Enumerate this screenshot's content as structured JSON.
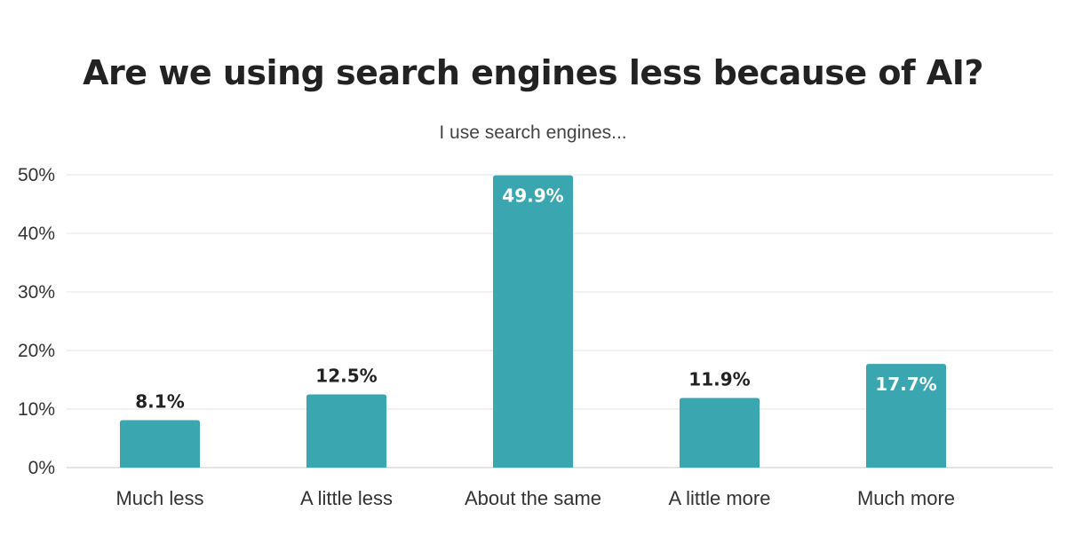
{
  "chart_data": {
    "type": "bar",
    "title": "Are we using search engines less because of AI?",
    "subtitle": "I use search engines...",
    "xlabel": "",
    "ylabel": "",
    "categories": [
      "Much less",
      "A little less",
      "About the same",
      "A little more",
      "Much more"
    ],
    "values": [
      8.1,
      12.5,
      49.9,
      11.9,
      17.7
    ],
    "data_labels": [
      "8.1%",
      "12.5%",
      "49.9%",
      "11.9%",
      "17.7%"
    ],
    "data_labels_inside": [
      false,
      false,
      true,
      false,
      true
    ],
    "y_ticks": [
      0,
      10,
      20,
      30,
      40,
      50
    ],
    "y_tick_labels": [
      "0%",
      "10%",
      "20%",
      "30%",
      "40%",
      "50%"
    ],
    "ylim": [
      0,
      50
    ],
    "grid": true,
    "legend": "none",
    "bar_color": "#3aa6b0",
    "label_color_outside": "#222222",
    "label_color_inside": "#ffffff"
  }
}
